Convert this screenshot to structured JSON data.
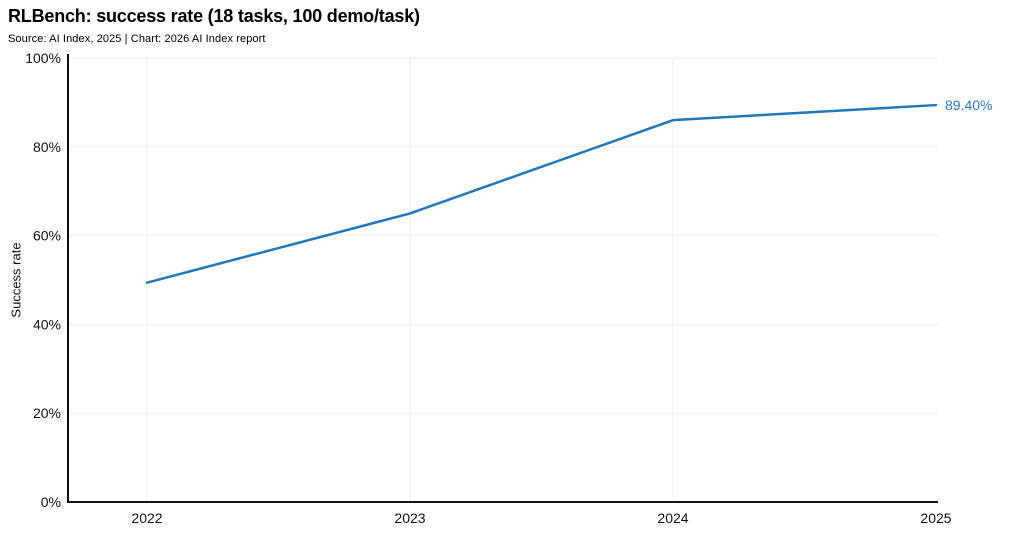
{
  "header": {
    "title": "RLBench: success rate (18 tasks, 100 demo/task)",
    "subtitle": "Source: AI Index, 2025 | Chart: 2026 AI Index report"
  },
  "chart_data": {
    "type": "line",
    "title": "RLBench: success rate (18 tasks, 100 demo/task)",
    "subtitle": "Source: AI Index, 2025 | Chart: 2026 AI Index report",
    "xlabel": "",
    "ylabel": "Success rate",
    "categories": [
      "2022",
      "2023",
      "2024",
      "2025"
    ],
    "values": [
      49.4,
      65.0,
      86.0,
      89.4
    ],
    "end_label": "89.40%",
    "ylim": [
      0,
      100
    ],
    "y_tick_values": [
      0,
      20,
      40,
      60,
      80,
      100
    ],
    "y_ticks": [
      "0%",
      "20%",
      "40%",
      "60%",
      "80%",
      "100%"
    ],
    "grid": true,
    "legend": "none",
    "colors": {
      "line": "#2176bd",
      "end_label": "#2b7dc4",
      "grid": "#efefef",
      "axis": "#111111"
    }
  }
}
